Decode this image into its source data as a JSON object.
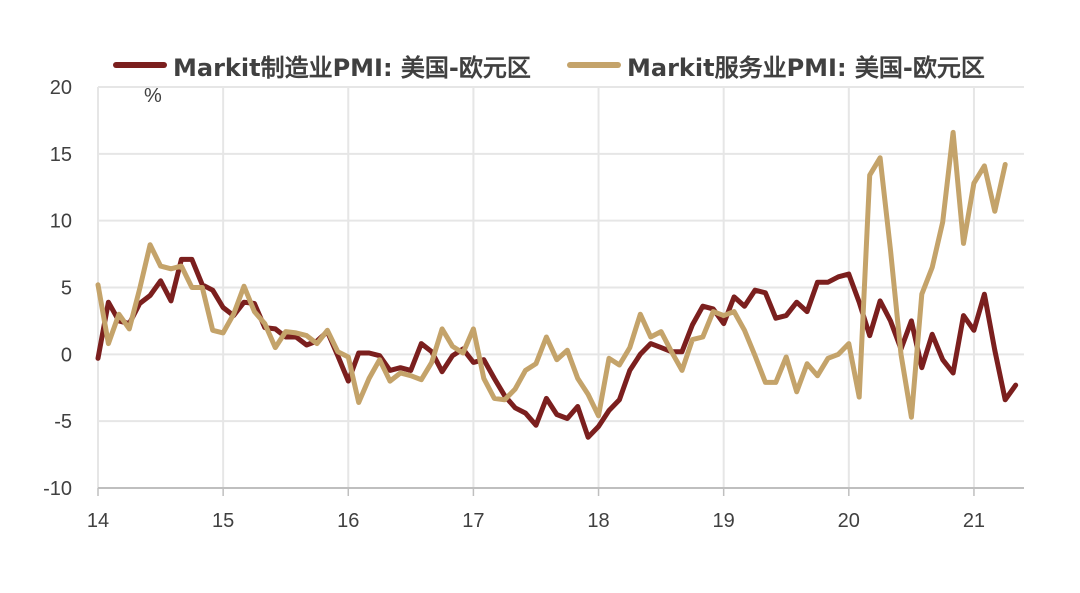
{
  "chart_data": {
    "type": "line",
    "unit": "%",
    "ylim": [
      -10,
      20
    ],
    "yticks": [
      "20",
      "15",
      "10",
      "5",
      "0",
      "-5",
      "-10"
    ],
    "ytick_values": [
      20,
      15,
      10,
      5,
      0,
      -5,
      -10
    ],
    "xticks": [
      "14",
      "15",
      "16",
      "17",
      "18",
      "19",
      "20",
      "21"
    ],
    "xtick_values": [
      14,
      15,
      16,
      17,
      18,
      19,
      20,
      21
    ],
    "x_start": 14,
    "x_step": 0.0833333,
    "grid": true,
    "legend_position": "top",
    "series": [
      {
        "name": "Markit制造业PMI: 美国-欧元区",
        "color": "#7B1F1E",
        "values": [
          -0.3,
          3.9,
          2.5,
          2.3,
          3.8,
          4.4,
          5.5,
          4.0,
          7.1,
          7.1,
          5.2,
          4.8,
          3.5,
          2.9,
          3.9,
          3.8,
          2.0,
          1.9,
          1.3,
          1.3,
          0.7,
          1.0,
          1.7,
          -0.1,
          -2.0,
          0.1,
          0.1,
          -0.1,
          -1.2,
          -1.0,
          -1.2,
          0.8,
          0.2,
          -1.3,
          -0.1,
          0.4,
          -0.6,
          -0.4,
          -1.8,
          -3.1,
          -4.0,
          -4.4,
          -5.3,
          -3.3,
          -4.5,
          -4.8,
          -3.9,
          -6.2,
          -5.4,
          -4.2,
          -3.4,
          -1.2,
          0.0,
          0.8,
          0.5,
          0.2,
          0.2,
          2.2,
          3.6,
          3.4,
          2.3,
          4.3,
          3.6,
          4.8,
          4.6,
          2.7,
          2.9,
          3.9,
          3.2,
          5.4,
          5.4,
          5.8,
          6.0,
          3.9,
          1.4,
          4.0,
          2.5,
          0.4,
          2.5,
          -1.0,
          1.5,
          -0.4,
          -1.4,
          2.9,
          1.8,
          4.5,
          0.3,
          -3.4,
          -2.3
        ]
      },
      {
        "name": "Markit服务业PMI: 美国-欧元区",
        "color": "#C4A36A",
        "values": [
          5.2,
          0.8,
          3.0,
          1.9,
          4.9,
          8.2,
          6.6,
          6.4,
          6.6,
          5.0,
          5.0,
          1.8,
          1.6,
          3.0,
          5.1,
          3.2,
          2.3,
          0.5,
          1.7,
          1.6,
          1.4,
          0.8,
          1.8,
          0.2,
          -0.2,
          -3.6,
          -1.8,
          -0.4,
          -2.0,
          -1.4,
          -1.6,
          -1.9,
          -0.6,
          1.9,
          0.6,
          0.1,
          1.9,
          -1.8,
          -3.3,
          -3.4,
          -2.6,
          -1.2,
          -0.7,
          1.3,
          -0.4,
          0.3,
          -1.8,
          -3.0,
          -4.6,
          -0.3,
          -0.8,
          0.5,
          3.0,
          1.3,
          1.7,
          0.2,
          -1.2,
          1.1,
          1.3,
          3.2,
          2.9,
          3.2,
          1.8,
          -0.1,
          -2.1,
          -2.1,
          -0.2,
          -2.8,
          -0.7,
          -1.6,
          -0.3,
          0.0,
          0.8,
          -3.2,
          13.4,
          14.7,
          7.8,
          0.0,
          -4.7,
          4.5,
          6.5,
          9.9,
          16.6,
          8.3,
          12.8,
          14.1,
          10.7,
          14.2
        ]
      }
    ]
  }
}
